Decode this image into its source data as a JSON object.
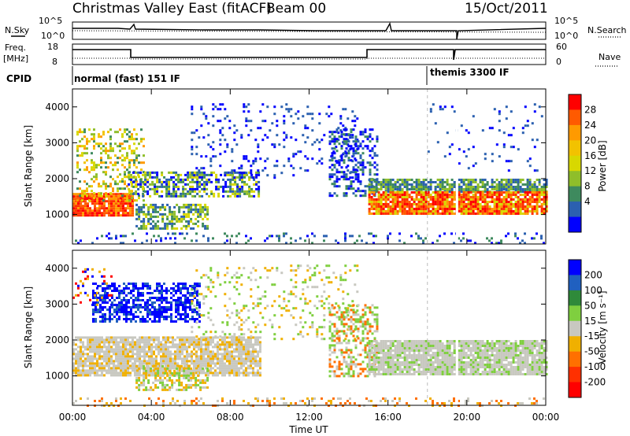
{
  "header": {
    "title": "Christmas Valley East (fitACF)",
    "beam": "Beam 00",
    "date": "15/Oct/2011"
  },
  "top_panels": {
    "nsky_label": "N.Sky",
    "nsky_ticks": [
      "10^5",
      "10^0"
    ],
    "nsearch_label": "N.Search",
    "nsearch_ticks": [
      "10^5",
      "10^0"
    ],
    "freq_label": "Freq.",
    "freq_unit": "[MHz]",
    "freq_ticks": [
      "18",
      "8"
    ],
    "nave_label": "Nave",
    "nave_ticks": [
      "60",
      "0"
    ],
    "cpid_label": "CPID",
    "cpid_mode_1": "normal (fast) 151 IF",
    "cpid_mode_2": "themis 3300 IF"
  },
  "chart_data": [
    {
      "type": "heatmap",
      "name": "power-panel",
      "xlabel": "Time UT",
      "ylabel": "Slant Range [km]",
      "x_ticks": [
        "00:00",
        "04:00",
        "08:00",
        "12:00",
        "16:00",
        "20:00",
        "00:00"
      ],
      "y_ticks": [
        "1000",
        "2000",
        "3000",
        "4000"
      ],
      "ylim": [
        180,
        4500
      ],
      "colorbar_label": "Power [dB]",
      "colorbar_ticks": [
        "28",
        "24",
        "20",
        "16",
        "12",
        "8",
        "4"
      ],
      "colorbar_colors": [
        "#ff0000",
        "#ff5a00",
        "#ff9a00",
        "#f2c200",
        "#d8d800",
        "#8fbe2a",
        "#3e8a5e",
        "#2b60b0",
        "#0000ff"
      ]
    },
    {
      "type": "heatmap",
      "name": "velocity-panel",
      "xlabel": "Time UT",
      "ylabel": "Slant Range [km]",
      "x_ticks": [
        "00:00",
        "04:00",
        "08:00",
        "12:00",
        "16:00",
        "20:00",
        "00:00"
      ],
      "y_ticks": [
        "1000",
        "2000",
        "3000",
        "4000"
      ],
      "ylim": [
        180,
        4500
      ],
      "colorbar_label": "Velocity [m s⁻¹]",
      "colorbar_ticks": [
        "200",
        "100",
        "50",
        "15",
        "-15",
        "-50",
        "-100",
        "-200"
      ],
      "colorbar_colors": [
        "#0000ff",
        "#2060c0",
        "#2f8a3a",
        "#7fcf3f",
        "#c8c8c0",
        "#f0b000",
        "#ff7000",
        "#ff3000",
        "#ff0000"
      ]
    }
  ],
  "x_axis": {
    "label": "Time UT",
    "ticks": [
      "00:00",
      "04:00",
      "08:00",
      "12:00",
      "16:00",
      "20:00",
      "00:00"
    ]
  }
}
